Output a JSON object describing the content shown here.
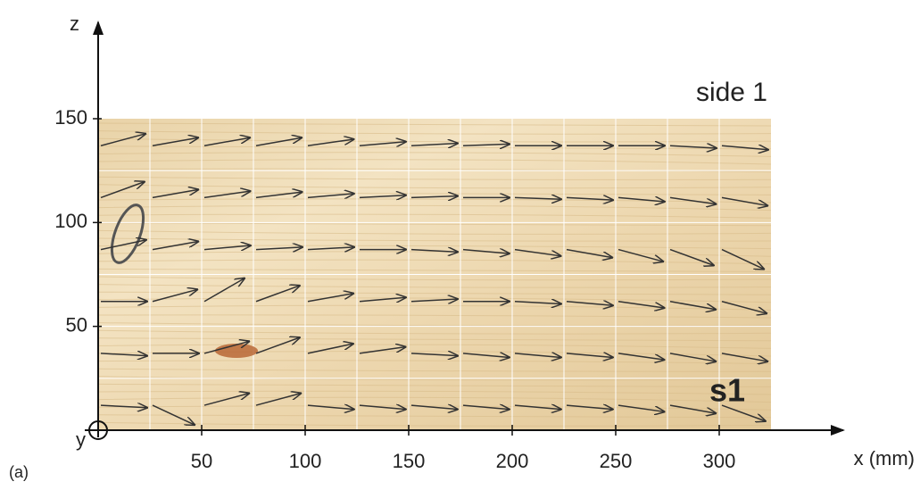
{
  "chart_data": {
    "type": "quiver",
    "x_label": "x (mm)",
    "y_label": "z",
    "origin_label": "y",
    "panel_label": "(a)",
    "annotations": [
      "side 1",
      "s1"
    ],
    "xlim": [
      0,
      325
    ],
    "ylim": [
      0,
      150
    ],
    "xticks": [
      50,
      100,
      150,
      200,
      250,
      300
    ],
    "yticks": [
      50,
      100,
      150
    ],
    "grid": true,
    "color": "#333333",
    "x": [
      0,
      25,
      50,
      75,
      100,
      125,
      150,
      175,
      200,
      225,
      250,
      275,
      300
    ],
    "rows": [
      {
        "z": 137,
        "angle": [
          15,
          10,
          10,
          10,
          8,
          5,
          3,
          2,
          0,
          0,
          0,
          -3,
          -5
        ]
      },
      {
        "z": 112,
        "angle": [
          20,
          10,
          8,
          7,
          5,
          3,
          2,
          0,
          -2,
          -3,
          -5,
          -8,
          -10
        ]
      },
      {
        "z": 87,
        "angle": [
          12,
          10,
          5,
          3,
          3,
          0,
          -3,
          -5,
          -8,
          -10,
          -15,
          -20,
          -25
        ]
      },
      {
        "z": 62,
        "angle": [
          0,
          15,
          30,
          20,
          10,
          5,
          3,
          0,
          -3,
          -5,
          -8,
          -10,
          -15
        ]
      },
      {
        "z": 37,
        "angle": [
          -3,
          0,
          15,
          20,
          12,
          8,
          -3,
          -5,
          -5,
          -5,
          -8,
          -10,
          -10
        ]
      },
      {
        "z": 12,
        "angle": [
          -3,
          -25,
          15,
          15,
          -5,
          -5,
          -5,
          -5,
          -5,
          -5,
          -8,
          -10,
          -20
        ]
      }
    ]
  }
}
